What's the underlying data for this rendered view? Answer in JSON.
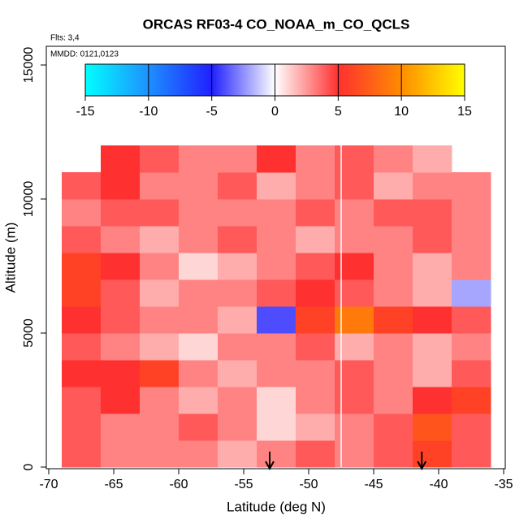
{
  "chart_data": {
    "type": "heatmap",
    "title": "ORCAS RF03-4 CO_NOAA_m_CO_QCLS",
    "flights_label": "Flts: 3,4",
    "dates_label": "MMDD: 0121,0123",
    "xlabel": "Latitude (deg N)",
    "ylabel": "Altitude (m)",
    "xlim": [
      -70,
      -35
    ],
    "xticks": [
      -70,
      -65,
      -60,
      -55,
      -50,
      -45,
      -40,
      -35
    ],
    "ylim": [
      0,
      15000
    ],
    "yticks": [
      0,
      5000,
      10000,
      15000
    ],
    "x_edges": [
      -69,
      -66,
      -63,
      -60,
      -57,
      -54,
      -51,
      -48,
      -45,
      -42,
      -39,
      -36
    ],
    "y_edges": [
      0,
      1000,
      2000,
      3000,
      4000,
      5000,
      6000,
      7000,
      8000,
      9000,
      10000,
      11000,
      12000
    ],
    "z": [
      [
        4,
        3,
        3,
        3,
        2,
        3,
        4,
        3,
        4,
        6,
        4
      ],
      [
        4,
        3,
        3,
        4,
        3,
        1,
        2,
        3,
        4,
        7,
        4
      ],
      [
        4,
        5,
        3,
        2,
        3,
        1,
        3,
        4,
        3,
        5,
        6
      ],
      [
        5,
        5,
        6,
        3,
        2,
        3,
        3,
        4,
        3,
        2,
        4
      ],
      [
        4,
        3,
        2,
        1,
        3,
        3,
        4,
        2,
        3,
        2,
        3
      ],
      [
        5,
        4,
        3,
        3,
        2,
        -4,
        6,
        9,
        6,
        5,
        4
      ],
      [
        6,
        4,
        2,
        3,
        3,
        4,
        5,
        4,
        3,
        2,
        -2
      ],
      [
        6,
        5,
        3,
        1,
        2,
        3,
        4,
        5,
        3,
        2,
        3
      ],
      [
        4,
        3,
        2,
        3,
        4,
        3,
        2,
        3,
        3,
        4,
        3
      ],
      [
        3,
        4,
        4,
        3,
        3,
        3,
        4,
        3,
        4,
        4,
        3
      ],
      [
        4,
        5,
        3,
        3,
        4,
        2,
        3,
        4,
        2,
        3,
        3
      ],
      [
        null,
        5,
        4,
        3,
        3,
        5,
        3,
        4,
        3,
        2,
        null
      ]
    ],
    "vline": -47.5,
    "arrows_x": [
      -53,
      -41.3
    ],
    "colorbar": {
      "ticks": [
        -15,
        -10,
        -5,
        0,
        5,
        10,
        15
      ],
      "colors": [
        "#00ffff",
        "#1e90ff",
        "#2020ff",
        "#ffffff",
        "#ff3030",
        "#ff8c00",
        "#ffff00"
      ]
    }
  }
}
